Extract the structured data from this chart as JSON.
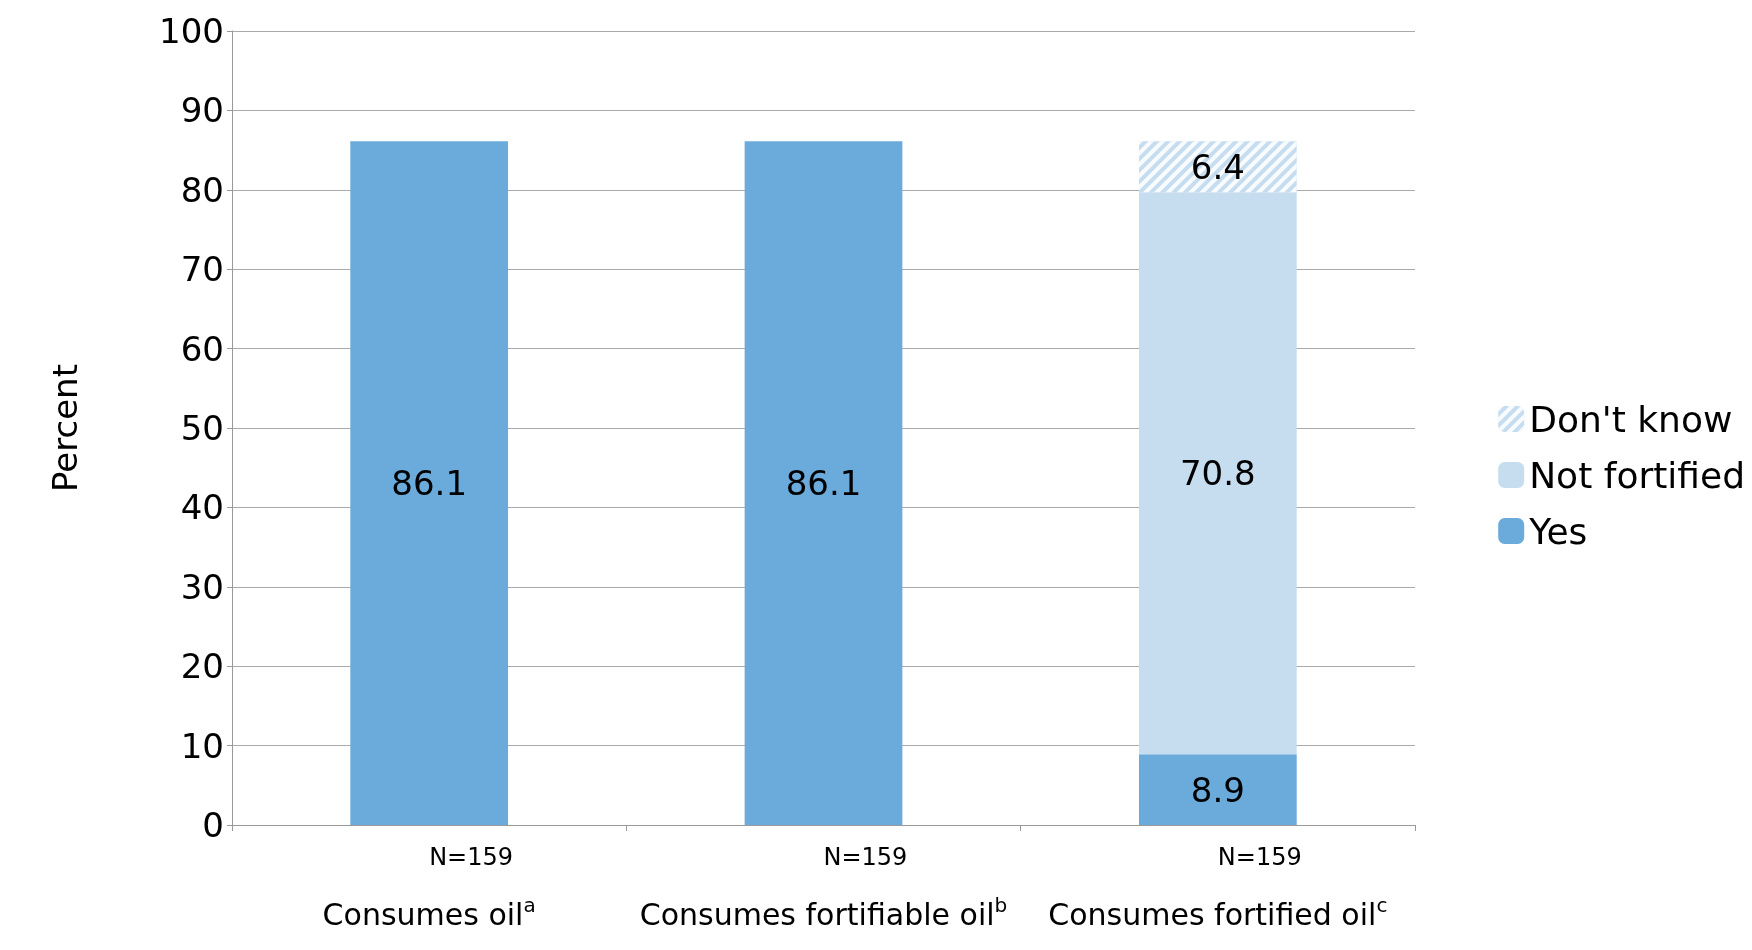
{
  "chart_data": {
    "type": "bar",
    "stacked": true,
    "ylabel": "Percent",
    "categories": [
      "Consumes oil$^{a}$",
      "Consumes fortifiable oil$^{b}$",
      "Consumes fortified oil$^{c}$"
    ],
    "series": [
      {
        "name": "Yes",
        "color": "#6aabdb",
        "values": [
          86.1,
          86.1,
          8.9
        ]
      },
      {
        "name": "Not fortified",
        "color": "#c6ddf0",
        "values": [
          null,
          null,
          70.8
        ]
      },
      {
        "name": "Don't know",
        "color": "#c6ddf0",
        "values": [
          null,
          null,
          6.4
        ]
      }
    ],
    "ylim": [
      0,
      100
    ],
    "yticks": [
      0,
      10,
      20,
      30,
      40,
      50,
      60,
      70,
      80,
      90,
      100
    ],
    "grid": "y",
    "legend": "right",
    "data_labels": true,
    "annotations": [
      "N=159",
      "N=159",
      "N=159"
    ]
  }
}
